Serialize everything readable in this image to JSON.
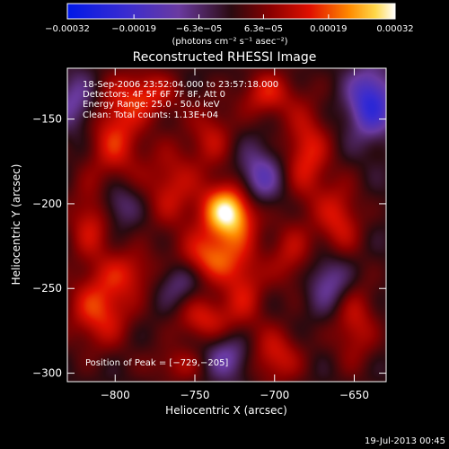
{
  "chart_data": {
    "type": "heatmap",
    "title": "Reconstructed RHESSI Image",
    "xlabel": "Heliocentric X (arcsec)",
    "ylabel": "Heliocentric Y (arcsec)",
    "xlim": [
      -830,
      -630
    ],
    "ylim": [
      -305,
      -120
    ],
    "xticks": [
      {
        "value": -800,
        "label": "−800"
      },
      {
        "value": -750,
        "label": "−750"
      },
      {
        "value": -700,
        "label": "−700"
      },
      {
        "value": -650,
        "label": "−650"
      }
    ],
    "yticks": [
      {
        "value": -150,
        "label": "−150"
      },
      {
        "value": -200,
        "label": "−200"
      },
      {
        "value": -250,
        "label": "−250"
      },
      {
        "value": -300,
        "label": "−300"
      }
    ],
    "colorbar": {
      "min": -0.00032,
      "max": 0.00032,
      "ticks": [
        {
          "value": -0.00032,
          "label": "−0.00032"
        },
        {
          "value": -0.00019,
          "label": "−0.00019"
        },
        {
          "value": -6.3e-05,
          "label": "−6.3e−05"
        },
        {
          "value": 6.3e-05,
          "label": "6.3e−05"
        },
        {
          "value": 0.00019,
          "label": "0.00019"
        },
        {
          "value": 0.00032,
          "label": "0.00032"
        }
      ],
      "unit_label": "(photons cm⁻² s⁻¹ asec⁻²)"
    },
    "annotations": [
      "18-Sep-2006 23:52:04.000 to 23:57:18.000",
      "Detectors: 4F 5F 6F 7F 8F, Att 0",
      "Energy Range: 25.0 - 50.0 keV",
      "Clean: Total counts: 1.13E+04"
    ],
    "peak_label": "Position of Peak = [−729,−205]",
    "peak": {
      "x": -729,
      "y": -205
    },
    "timestamp": "19-Jul-2013 00:45",
    "sources": [
      {
        "x": -729,
        "y": -205,
        "amp": 1.0,
        "sx": 12,
        "sy": 12
      },
      {
        "x": -742,
        "y": -232,
        "amp": 0.55,
        "sx": 14,
        "sy": 10
      },
      {
        "x": -745,
        "y": -268,
        "amp": 0.45,
        "sx": 12,
        "sy": 10
      },
      {
        "x": -740,
        "y": -160,
        "amp": 0.35,
        "sx": 10,
        "sy": 14
      },
      {
        "x": -765,
        "y": -190,
        "amp": 0.4,
        "sx": 12,
        "sy": 18
      },
      {
        "x": -800,
        "y": -160,
        "amp": 0.5,
        "sx": 12,
        "sy": 20
      },
      {
        "x": -815,
        "y": -210,
        "amp": 0.45,
        "sx": 10,
        "sy": 16
      },
      {
        "x": -810,
        "y": -262,
        "amp": 0.55,
        "sx": 14,
        "sy": 16
      },
      {
        "x": -790,
        "y": -240,
        "amp": 0.35,
        "sx": 12,
        "sy": 10
      },
      {
        "x": -720,
        "y": -250,
        "amp": 0.4,
        "sx": 10,
        "sy": 18
      },
      {
        "x": -700,
        "y": -290,
        "amp": 0.45,
        "sx": 12,
        "sy": 12
      },
      {
        "x": -690,
        "y": -230,
        "amp": 0.35,
        "sx": 10,
        "sy": 14
      },
      {
        "x": -680,
        "y": -170,
        "amp": 0.5,
        "sx": 10,
        "sy": 20
      },
      {
        "x": -660,
        "y": -210,
        "amp": 0.45,
        "sx": 10,
        "sy": 16
      },
      {
        "x": -650,
        "y": -270,
        "amp": 0.4,
        "sx": 10,
        "sy": 18
      },
      {
        "x": -780,
        "y": -135,
        "amp": 0.45,
        "sx": 14,
        "sy": 10
      },
      {
        "x": -705,
        "y": -135,
        "amp": 0.45,
        "sx": 12,
        "sy": 10
      },
      {
        "x": -760,
        "y": -295,
        "amp": 0.3,
        "sx": 14,
        "sy": 8
      },
      {
        "x": -640,
        "y": -140,
        "amp": -0.7,
        "sx": 10,
        "sy": 14
      },
      {
        "x": -710,
        "y": -185,
        "amp": -0.45,
        "sx": 10,
        "sy": 12
      },
      {
        "x": -800,
        "y": -200,
        "amp": -0.35,
        "sx": 10,
        "sy": 10
      },
      {
        "x": -730,
        "y": -290,
        "amp": -0.4,
        "sx": 12,
        "sy": 10
      },
      {
        "x": -665,
        "y": -245,
        "amp": -0.4,
        "sx": 10,
        "sy": 12
      },
      {
        "x": -825,
        "y": -140,
        "amp": -0.35,
        "sx": 10,
        "sy": 12
      },
      {
        "x": -760,
        "y": -245,
        "amp": -0.3,
        "sx": 10,
        "sy": 10
      }
    ]
  }
}
